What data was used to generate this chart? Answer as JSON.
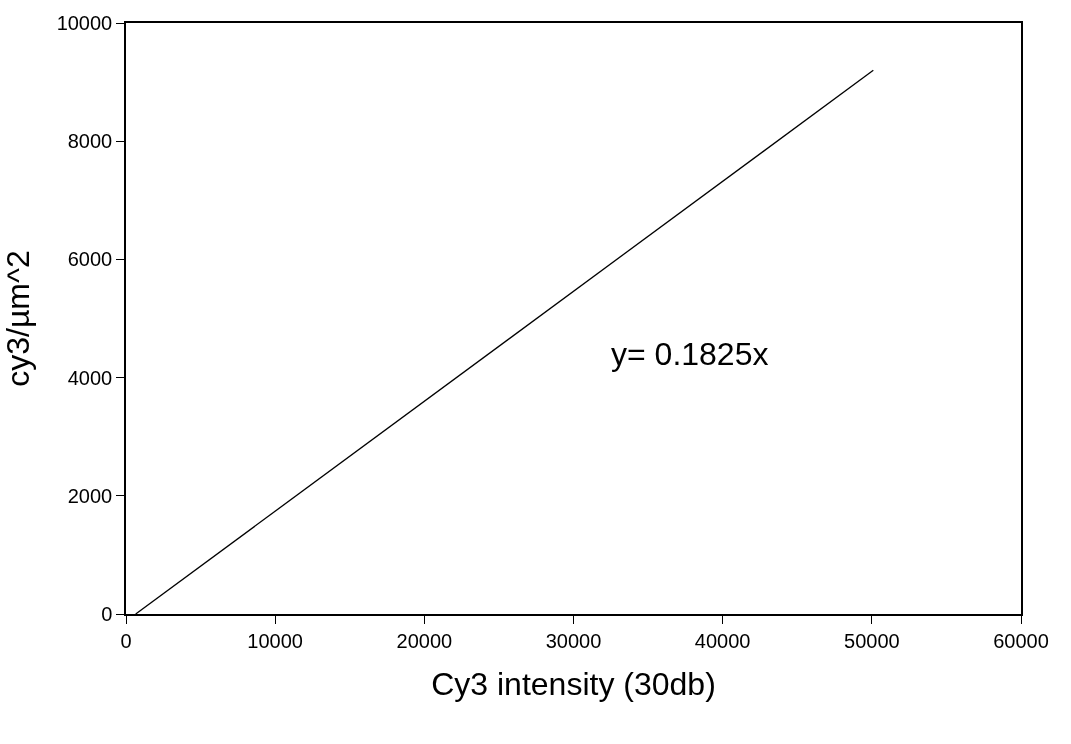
{
  "chart_data": {
    "type": "line",
    "x": [
      650,
      50100
    ],
    "series": [
      {
        "color": "#000000",
        "values": [
          0,
          9200
        ]
      }
    ],
    "xlabel": "Cy3 intensity (30db)",
    "ylabel": "cy3/µm^2",
    "xlim": [
      0,
      60000
    ],
    "xticks": [
      0,
      10000,
      20000,
      30000,
      40000,
      50000,
      60000
    ],
    "ylim": [
      0,
      10000
    ],
    "yticks": [
      0,
      2000,
      4000,
      6000,
      8000,
      10000
    ],
    "annotations": [
      "y= 0.1825x"
    ],
    "marker": "none",
    "line_style": "solid"
  }
}
